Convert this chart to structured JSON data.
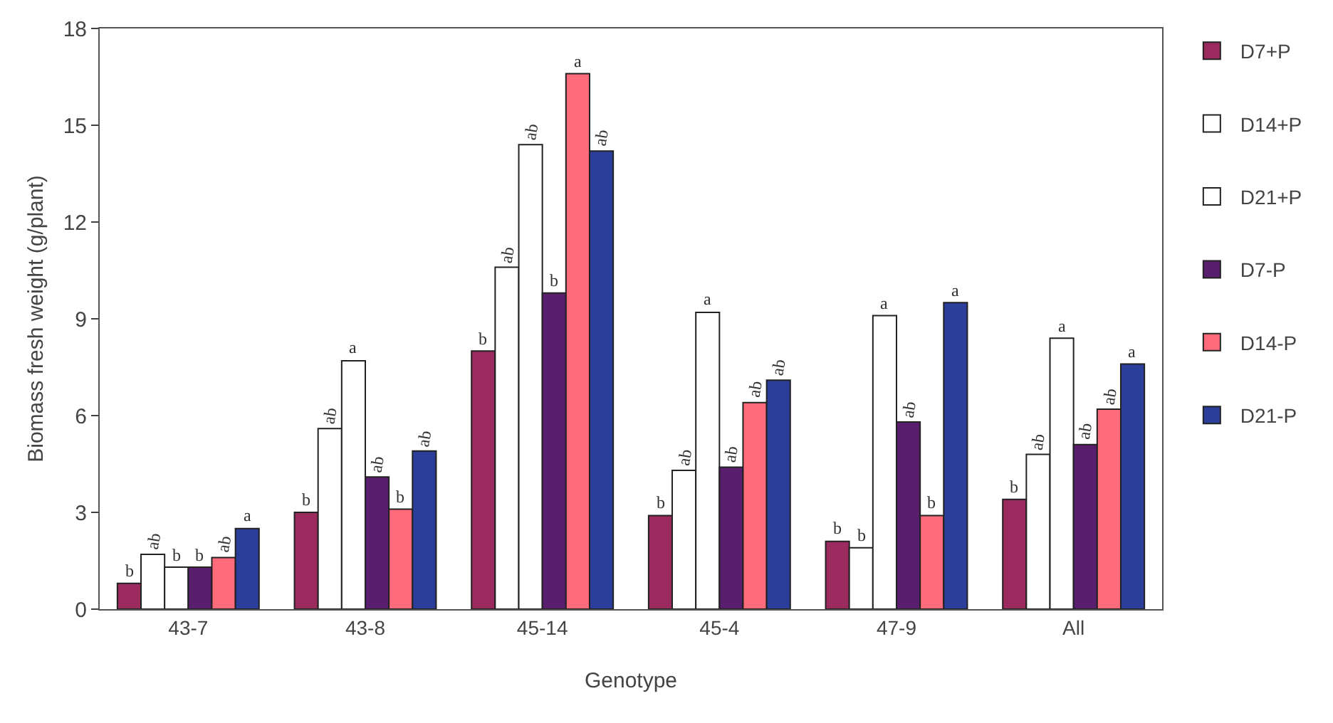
{
  "chart_data": {
    "type": "bar",
    "xlabel": "Genotype",
    "ylabel": "Biomass fresh weight (g/plant)",
    "categories": [
      "43-7",
      "43-8",
      "45-14",
      "45-4",
      "47-9",
      "All"
    ],
    "series": [
      {
        "name": "D7+P",
        "color": "#9b2a5e",
        "values": [
          0.8,
          3.0,
          8.0,
          2.9,
          2.1,
          3.4
        ]
      },
      {
        "name": "D14+P",
        "color": "#ffffff",
        "values": [
          1.7,
          5.6,
          10.6,
          4.3,
          1.9,
          4.8
        ]
      },
      {
        "name": "D21+P",
        "color": "#ffffff",
        "values": [
          1.3,
          7.7,
          14.4,
          9.2,
          9.1,
          8.4
        ]
      },
      {
        "name": "D7-P",
        "color": "#5a1e6e",
        "values": [
          1.3,
          4.1,
          9.8,
          4.4,
          5.8,
          5.1
        ]
      },
      {
        "name": "D14-P",
        "color": "#ff6b7a",
        "values": [
          1.6,
          3.1,
          16.6,
          6.4,
          2.9,
          6.2
        ]
      },
      {
        "name": "D21-P",
        "color": "#2b3f9a",
        "values": [
          2.5,
          4.9,
          14.2,
          7.1,
          9.5,
          7.6
        ]
      }
    ],
    "ylim": [
      0,
      18
    ],
    "yticks": [
      0,
      3,
      6,
      9,
      12,
      15,
      18
    ],
    "grid": false,
    "legend": "right",
    "annotations": [
      "b",
      "ab",
      "b",
      "b",
      "ab",
      "a",
      "b",
      "ab",
      "a",
      "ab",
      "b",
      "ab",
      "b",
      "ab",
      "ab",
      "b",
      "a",
      "ab",
      "b",
      "ab",
      "a",
      "ab",
      "ab",
      "ab",
      "b",
      "b",
      "a",
      "ab",
      "b",
      "a",
      "b",
      "ab",
      "a",
      "ab",
      "ab",
      "a"
    ]
  }
}
